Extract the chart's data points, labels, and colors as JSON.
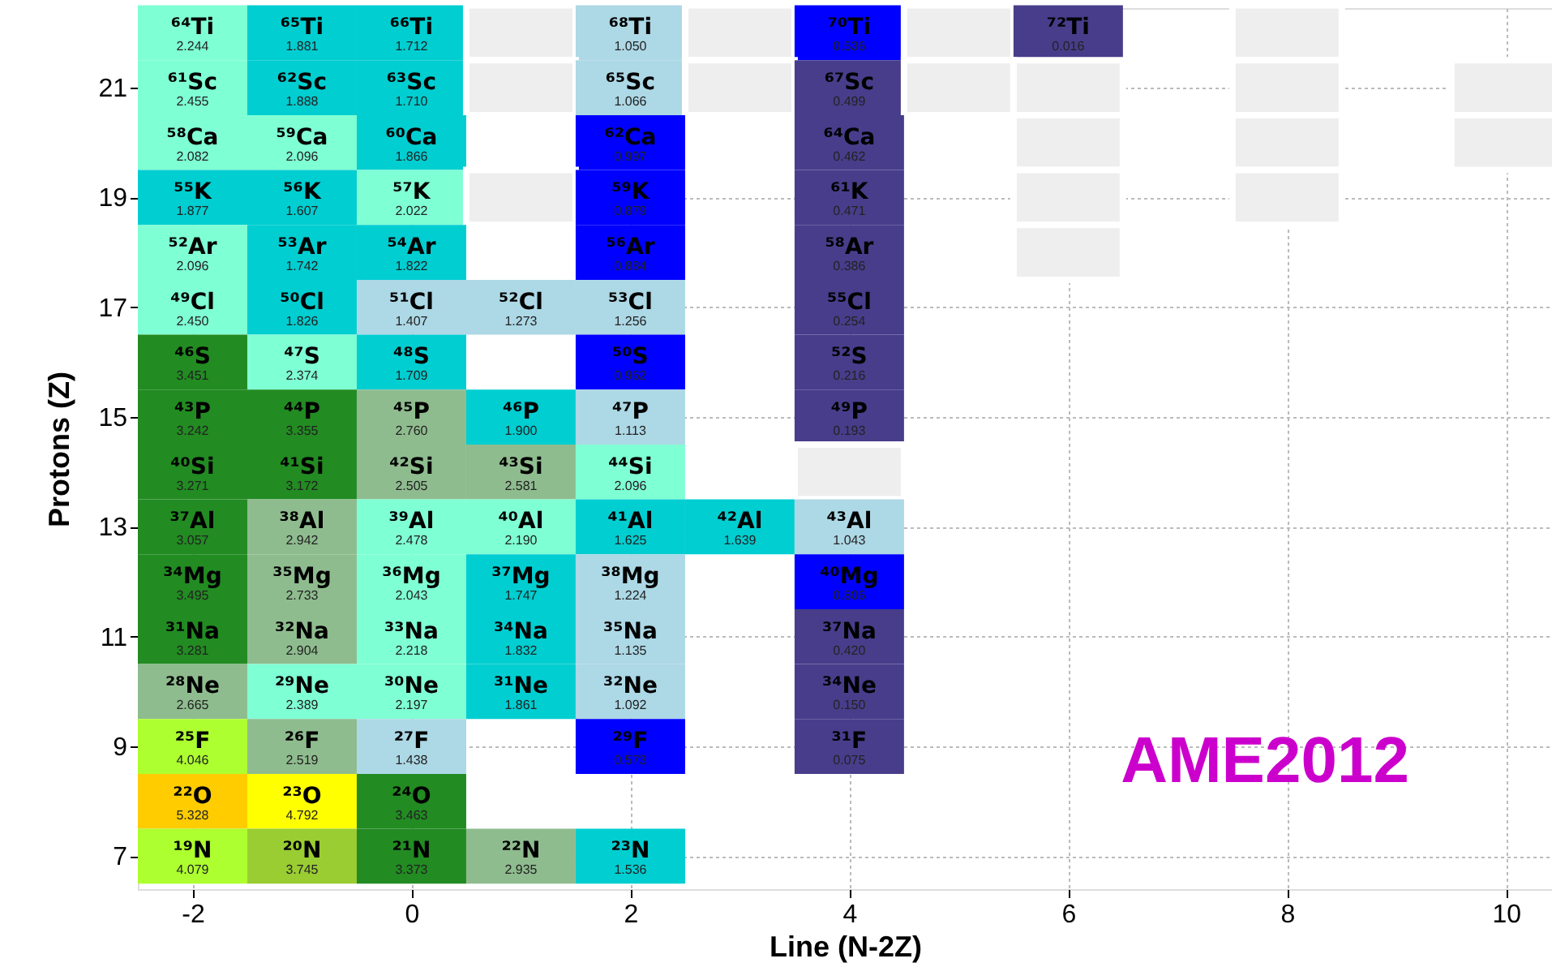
{
  "chart_data": {
    "type": "heatmap",
    "xlabel": "Line (N-2Z)",
    "ylabel": "Protons (Z)",
    "x": [
      -2,
      -1,
      0,
      1,
      2,
      3,
      4,
      5,
      6,
      7,
      8,
      9,
      10
    ],
    "y_categories": [
      null,
      "21",
      null,
      "19",
      null,
      "17",
      null,
      "15",
      null,
      "13",
      null,
      "11",
      null,
      "9",
      null,
      "7"
    ],
    "xlim": [
      -2.5,
      10.42
    ],
    "xticks": [
      -2,
      0,
      2,
      4,
      6,
      8,
      10
    ],
    "grid": true,
    "cells": [
      [
        2.244,
        1.881,
        1.712,
        null,
        1.05,
        null,
        0.536,
        null,
        0.016,
        null,
        null,
        null,
        null
      ],
      [
        2.455,
        1.888,
        1.71,
        null,
        1.066,
        null,
        0.499,
        null,
        null,
        null,
        null,
        null,
        null
      ],
      [
        2.082,
        2.096,
        1.866,
        null,
        0.997,
        null,
        0.462,
        null,
        null,
        null,
        null,
        null,
        null
      ],
      [
        1.877,
        1.607,
        2.022,
        null,
        0.879,
        null,
        0.471,
        null,
        null,
        null,
        null,
        null,
        null
      ],
      [
        2.096,
        1.742,
        1.822,
        null,
        0.884,
        null,
        0.386,
        null,
        null,
        null,
        null,
        null,
        null
      ],
      [
        2.45,
        1.826,
        1.407,
        1.273,
        1.256,
        null,
        0.254,
        null,
        null,
        null,
        null,
        null,
        null
      ],
      [
        3.451,
        2.374,
        1.709,
        null,
        0.962,
        null,
        0.216,
        null,
        null,
        null,
        null,
        null,
        null
      ],
      [
        3.242,
        3.355,
        2.76,
        1.9,
        1.113,
        null,
        0.193,
        null,
        null,
        null,
        null,
        null,
        null
      ],
      [
        3.271,
        3.172,
        2.505,
        2.581,
        2.096,
        null,
        null,
        null,
        null,
        null,
        null,
        null,
        null
      ],
      [
        3.057,
        2.942,
        2.478,
        2.19,
        1.625,
        1.639,
        1.043,
        null,
        null,
        null,
        null,
        null,
        null
      ],
      [
        3.495,
        2.733,
        2.043,
        1.747,
        1.224,
        null,
        0.806,
        null,
        null,
        null,
        null,
        null,
        null
      ],
      [
        3.281,
        2.904,
        2.218,
        1.832,
        1.135,
        null,
        0.42,
        null,
        null,
        null,
        null,
        null,
        null
      ],
      [
        2.665,
        2.389,
        2.197,
        1.861,
        1.092,
        null,
        0.15,
        null,
        null,
        null,
        null,
        null,
        null
      ],
      [
        4.046,
        2.519,
        1.438,
        null,
        0.573,
        null,
        0.075,
        null,
        null,
        null,
        null,
        null,
        null
      ],
      [
        5.328,
        4.792,
        3.463,
        null,
        null,
        null,
        null,
        null,
        null,
        null,
        null,
        null,
        null
      ],
      [
        4.079,
        3.745,
        3.373,
        2.935,
        1.536,
        null,
        null,
        null,
        null,
        null,
        null,
        null,
        null
      ]
    ],
    "cell_labels": [
      [
        "2.244",
        "1.881",
        "1.712",
        null,
        "1.050",
        null,
        "0.536",
        null,
        "0.016",
        null,
        null,
        null,
        null
      ],
      [
        "2.455",
        "1.888",
        "1.710",
        null,
        "1.066",
        null,
        "0.499",
        null,
        null,
        null,
        null,
        null,
        null
      ],
      [
        "2.082",
        "2.096",
        "1.866",
        null,
        "0.997",
        null,
        "0.462",
        null,
        null,
        null,
        null,
        null,
        null
      ],
      [
        "1.877",
        "1.607",
        "2.022",
        null,
        "0.879",
        null,
        "0.471",
        null,
        null,
        null,
        null,
        null,
        null
      ],
      [
        "2.096",
        "1.742",
        "1.822",
        null,
        "0.884",
        null,
        "0.386",
        null,
        null,
        null,
        null,
        null,
        null
      ],
      [
        "2.450",
        "1.826",
        "1.407",
        "1.273",
        "1.256",
        null,
        "0.254",
        null,
        null,
        null,
        null,
        null,
        null
      ],
      [
        "3.451",
        "2.374",
        "1.709",
        null,
        "0.962",
        null,
        "0.216",
        null,
        null,
        null,
        null,
        null,
        null
      ],
      [
        "3.242",
        "3.355",
        "2.760",
        "1.900",
        "1.113",
        null,
        "0.193",
        null,
        null,
        null,
        null,
        null,
        null
      ],
      [
        "3.271",
        "3.172",
        "2.505",
        "2.581",
        "2.096",
        null,
        null,
        null,
        null,
        null,
        null,
        null,
        null
      ],
      [
        "3.057",
        "2.942",
        "2.478",
        "2.190",
        "1.625",
        "1.639",
        "1.043",
        null,
        null,
        null,
        null,
        null,
        null
      ],
      [
        "3.495",
        "2.733",
        "2.043",
        "1.747",
        "1.224",
        null,
        "0.806",
        null,
        null,
        null,
        null,
        null,
        null
      ],
      [
        "3.281",
        "2.904",
        "2.218",
        "1.832",
        "1.135",
        null,
        "0.420",
        null,
        null,
        null,
        null,
        null,
        null
      ],
      [
        "2.665",
        "2.389",
        "2.197",
        "1.861",
        "1.092",
        null,
        "0.150",
        null,
        null,
        null,
        null,
        null,
        null
      ],
      [
        "4.046",
        "2.519",
        "1.438",
        null,
        "0.573",
        null,
        "0.075",
        null,
        null,
        null,
        null,
        null,
        null
      ],
      [
        "5.328",
        "4.792",
        "3.463",
        null,
        null,
        null,
        null,
        null,
        null,
        null,
        null,
        null,
        null
      ],
      [
        "4.079",
        "3.745",
        "3.373",
        "2.935",
        "1.536",
        null,
        null,
        null,
        null,
        null,
        null,
        null,
        null
      ]
    ],
    "colors": [
      [
        "#7fffd4",
        "#00ced1",
        "#00ced1",
        "#eeeeee",
        "#add8e6",
        "#eeeeee",
        "#0000ff",
        "#eeeeee",
        "#483d8b",
        null,
        "#eeeeee",
        null,
        null
      ],
      [
        "#7fffd4",
        "#00ced1",
        "#00ced1",
        "#eeeeee",
        "#add8e6",
        "#eeeeee",
        "#483d8b",
        "#eeeeee",
        "#eeeeee",
        null,
        "#eeeeee",
        null,
        "#eeeeee"
      ],
      [
        "#7fffd4",
        "#7fffd4",
        "#00ced1",
        null,
        "#0000ff",
        null,
        "#483d8b",
        null,
        "#eeeeee",
        null,
        "#eeeeee",
        null,
        "#eeeeee"
      ],
      [
        "#00ced1",
        "#00ced1",
        "#7fffd4",
        "#eeeeee",
        "#0000ff",
        null,
        "#483d8b",
        null,
        "#eeeeee",
        null,
        "#eeeeee",
        null,
        null
      ],
      [
        "#7fffd4",
        "#00ced1",
        "#00ced1",
        null,
        "#0000ff",
        null,
        "#483d8b",
        null,
        "#eeeeee",
        null,
        null,
        null,
        null
      ],
      [
        "#7fffd4",
        "#00ced1",
        "#add8e6",
        "#add8e6",
        "#add8e6",
        null,
        "#483d8b",
        null,
        null,
        null,
        null,
        null,
        null
      ],
      [
        "#228b22",
        "#7fffd4",
        "#00ced1",
        null,
        "#0000ff",
        null,
        "#483d8b",
        null,
        null,
        null,
        null,
        null,
        null
      ],
      [
        "#228b22",
        "#228b22",
        "#8fbc8f",
        "#00ced1",
        "#add8e6",
        null,
        "#483d8b",
        null,
        null,
        null,
        null,
        null,
        null
      ],
      [
        "#228b22",
        "#228b22",
        "#8fbc8f",
        "#8fbc8f",
        "#7fffd4",
        null,
        "#eeeeee",
        null,
        null,
        null,
        null,
        null,
        null
      ],
      [
        "#228b22",
        "#8fbc8f",
        "#7fffd4",
        "#7fffd4",
        "#00ced1",
        "#00ced1",
        "#add8e6",
        null,
        null,
        null,
        null,
        null,
        null
      ],
      [
        "#228b22",
        "#8fbc8f",
        "#7fffd4",
        "#00ced1",
        "#add8e6",
        null,
        "#0000ff",
        null,
        null,
        null,
        null,
        null,
        null
      ],
      [
        "#228b22",
        "#8fbc8f",
        "#7fffd4",
        "#00ced1",
        "#add8e6",
        null,
        "#483d8b",
        null,
        null,
        null,
        null,
        null,
        null
      ],
      [
        "#8fbc8f",
        "#7fffd4",
        "#7fffd4",
        "#00ced1",
        "#add8e6",
        null,
        "#483d8b",
        null,
        null,
        null,
        null,
        null,
        null
      ],
      [
        "#adff2f",
        "#8fbc8f",
        "#add8e6",
        null,
        "#0000ff",
        null,
        "#483d8b",
        null,
        null,
        null,
        null,
        null,
        null
      ],
      [
        "#ffcc00",
        "#ffff00",
        "#228b22",
        null,
        null,
        null,
        null,
        null,
        null,
        null,
        null,
        null,
        null
      ],
      [
        "#adff2f",
        "#9acd32",
        "#228b22",
        "#8fbc8f",
        "#00ced1",
        null,
        null,
        null,
        null,
        null,
        null,
        null,
        null
      ]
    ],
    "annotations": [
      "⁶⁴Ti",
      "⁶⁵Ti",
      "⁶⁶Ti",
      "⁶⁸Ti",
      "⁷⁰Ti",
      "⁷²Ti",
      "⁶¹Sc",
      "⁶²Sc",
      "⁶³Sc",
      "⁶⁵Sc",
      "⁶⁷Sc",
      "⁵⁸Ca",
      "⁵⁹Ca",
      "⁶⁰Ca",
      "⁶²Ca",
      "⁶⁴Ca",
      "⁵⁵K",
      "⁵⁶K",
      "⁵⁷K",
      "⁵⁹K",
      "⁶¹K",
      "⁵²Ar",
      "⁵³Ar",
      "⁵⁴Ar",
      "⁵⁶Ar",
      "⁵⁸Ar",
      "⁴⁹Cl",
      "⁵⁰Cl",
      "⁵¹Cl",
      "⁵²Cl",
      "⁵³Cl",
      "⁵⁵Cl",
      "⁴⁶S",
      "⁴⁷S",
      "⁴⁸S",
      "⁵⁰S",
      "⁵²S",
      "⁴³P",
      "⁴⁴P",
      "⁴⁵P",
      "⁴⁶P",
      "⁴⁷P",
      "⁴⁹P",
      "⁴⁰Si",
      "⁴¹Si",
      "⁴²Si",
      "⁴³Si",
      "⁴⁴Si",
      "³⁷Al",
      "³⁸Al",
      "³⁹Al",
      "⁴⁰Al",
      "⁴¹Al",
      "⁴²Al",
      "⁴³Al",
      "³⁴Mg",
      "³⁵Mg",
      "³⁶Mg",
      "³⁷Mg",
      "³⁸Mg",
      "⁴⁰Mg",
      "³¹Na",
      "³²Na",
      "³³Na",
      "³⁴Na",
      "³⁵Na",
      "³⁷Na",
      "²⁸Ne",
      "²⁹Ne",
      "³⁰Ne",
      "³¹Ne",
      "³²Ne",
      "³⁴Ne",
      "²⁵F",
      "²⁶F",
      "²⁷F",
      "²⁹F",
      "³¹F",
      "²²O",
      "²³O",
      "²⁴O",
      "¹⁹N",
      "²⁰N",
      "²¹N",
      "²²N",
      "²³N",
      "AME2012"
    ]
  }
}
